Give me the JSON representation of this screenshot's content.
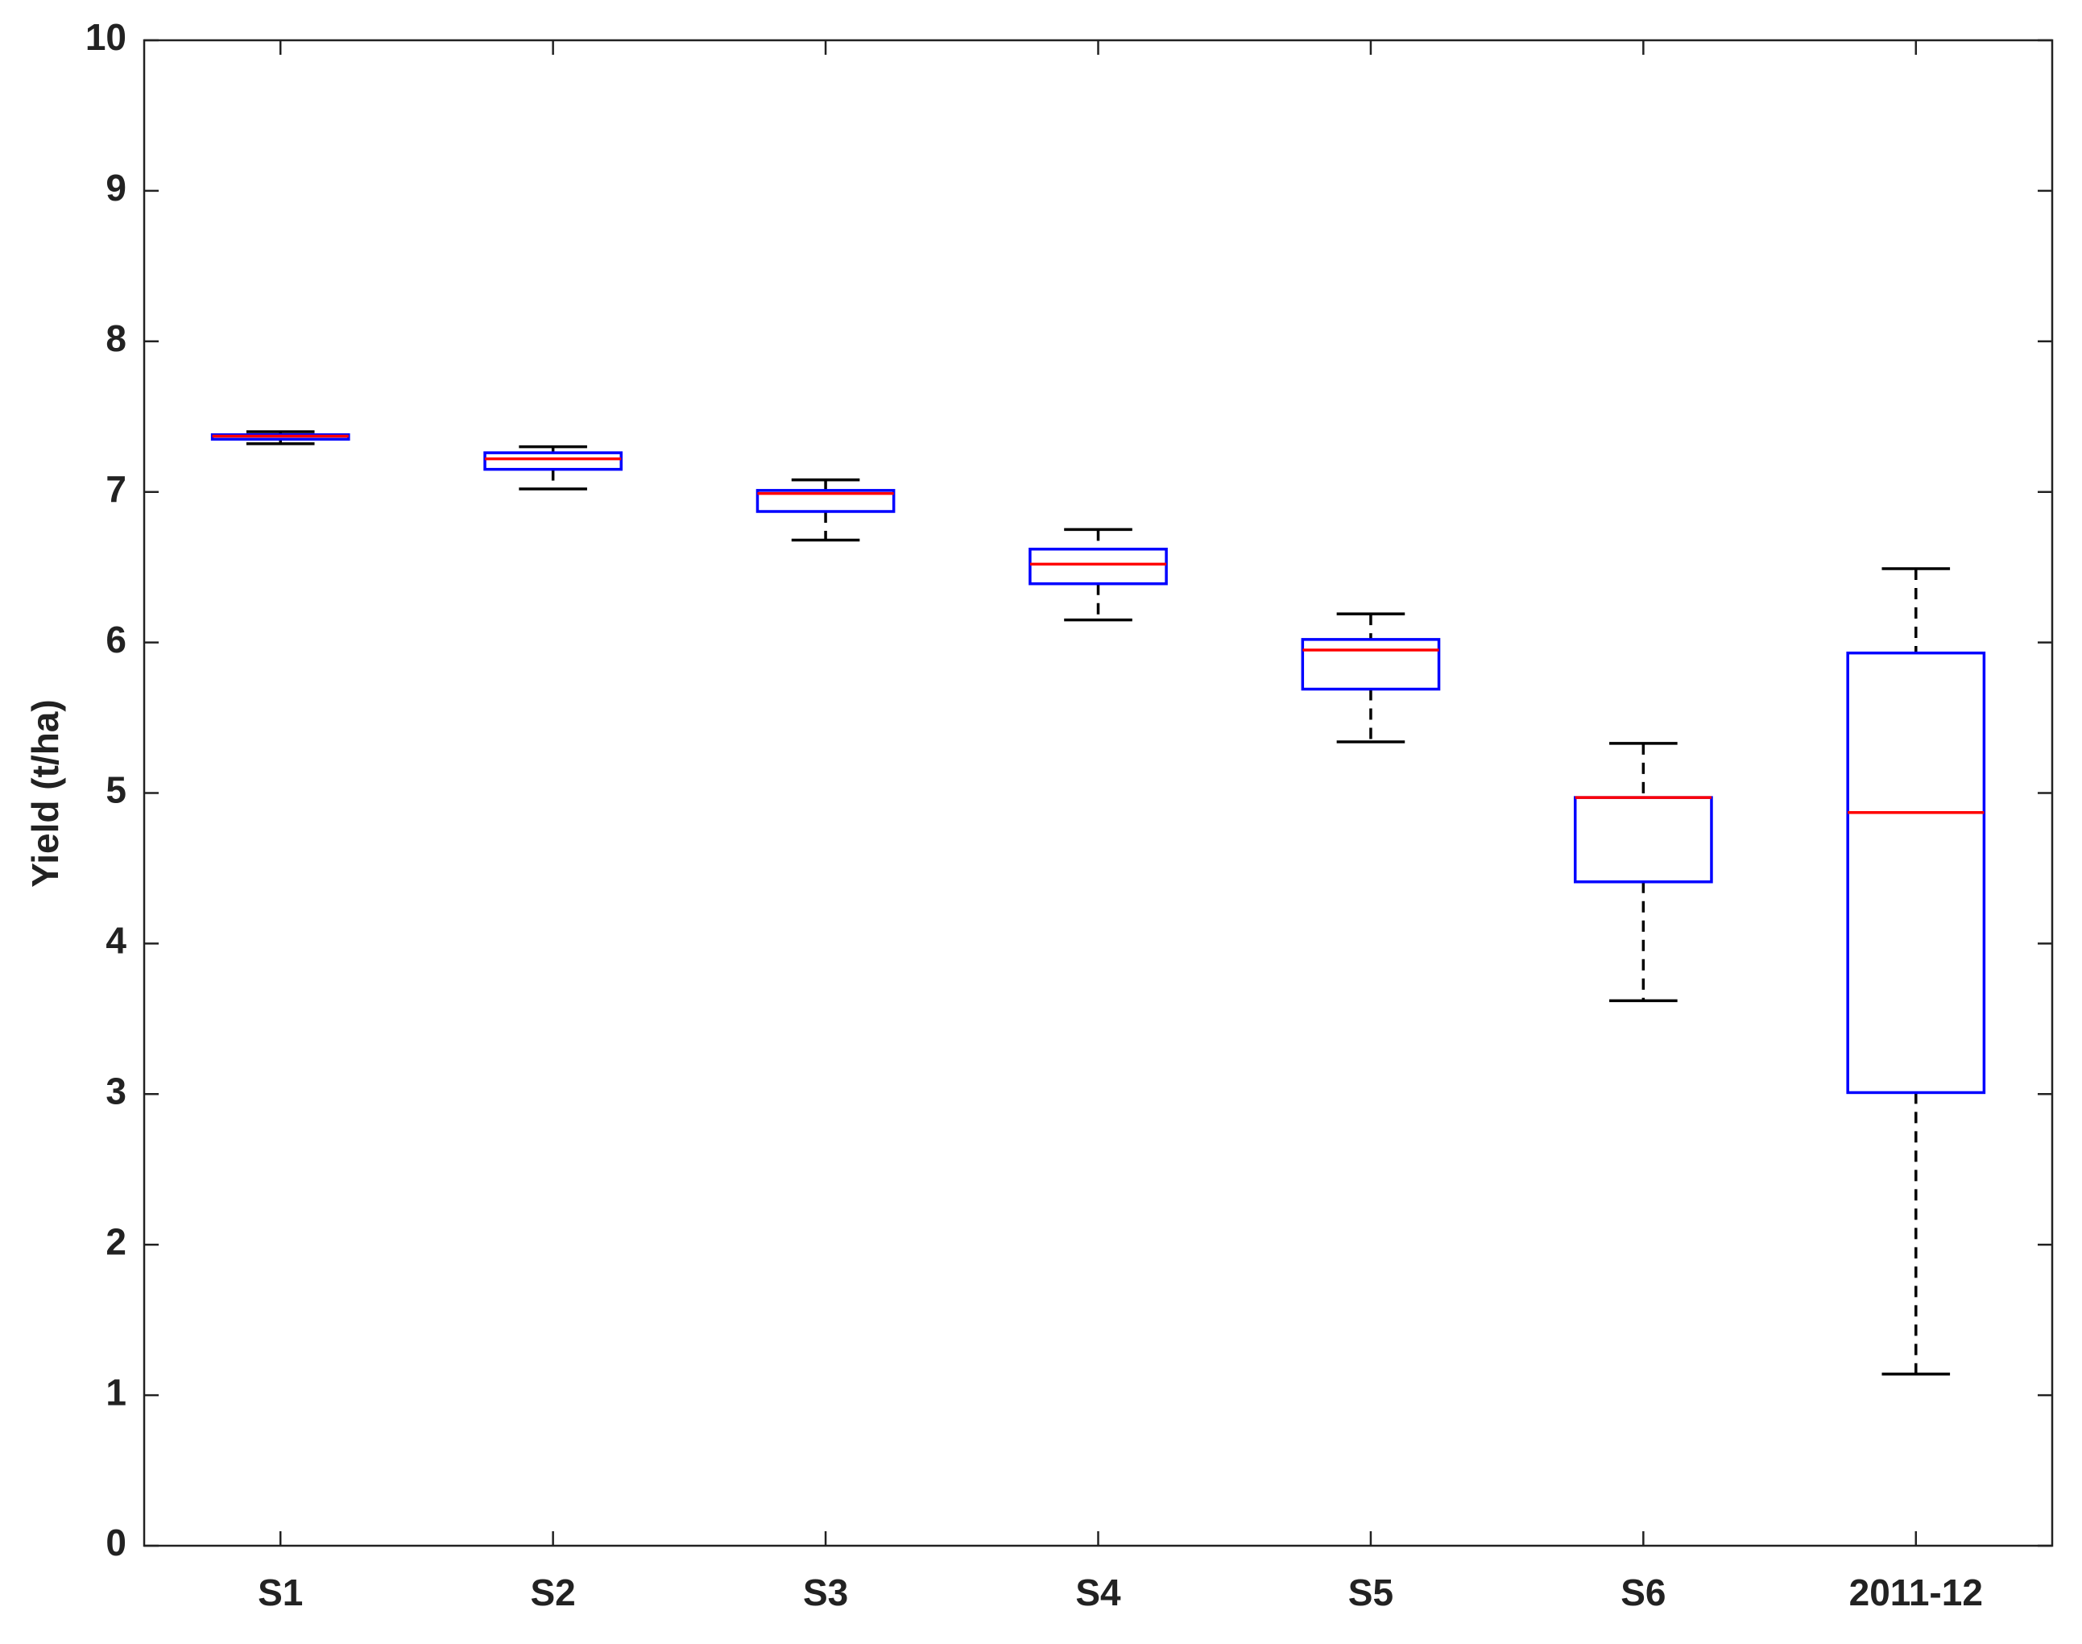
{
  "chart_data": {
    "type": "box",
    "y_label": "Yield (t/ha)",
    "categories": [
      "S1",
      "S2",
      "S3",
      "S4",
      "S5",
      "S6",
      "2011-12"
    ],
    "whisker_high": [
      7.4,
      7.3,
      7.08,
      6.75,
      6.19,
      5.33,
      6.49
    ],
    "q3": [
      7.38,
      7.26,
      7.01,
      6.62,
      6.02,
      4.97,
      5.93
    ],
    "median": [
      7.37,
      7.22,
      6.99,
      6.52,
      5.95,
      4.97,
      4.87
    ],
    "q1": [
      7.35,
      7.15,
      6.87,
      6.39,
      5.69,
      4.41,
      3.01
    ],
    "whisker_low": [
      7.32,
      7.02,
      6.68,
      6.15,
      5.34,
      3.62,
      1.14
    ],
    "box_color": "#0000ff",
    "median_color": "#ff0000",
    "whisker_color": "#000000",
    "ylim": [
      0,
      10
    ],
    "yticks": [
      0,
      1,
      2,
      3,
      4,
      5,
      6,
      7,
      8,
      9,
      10
    ]
  }
}
